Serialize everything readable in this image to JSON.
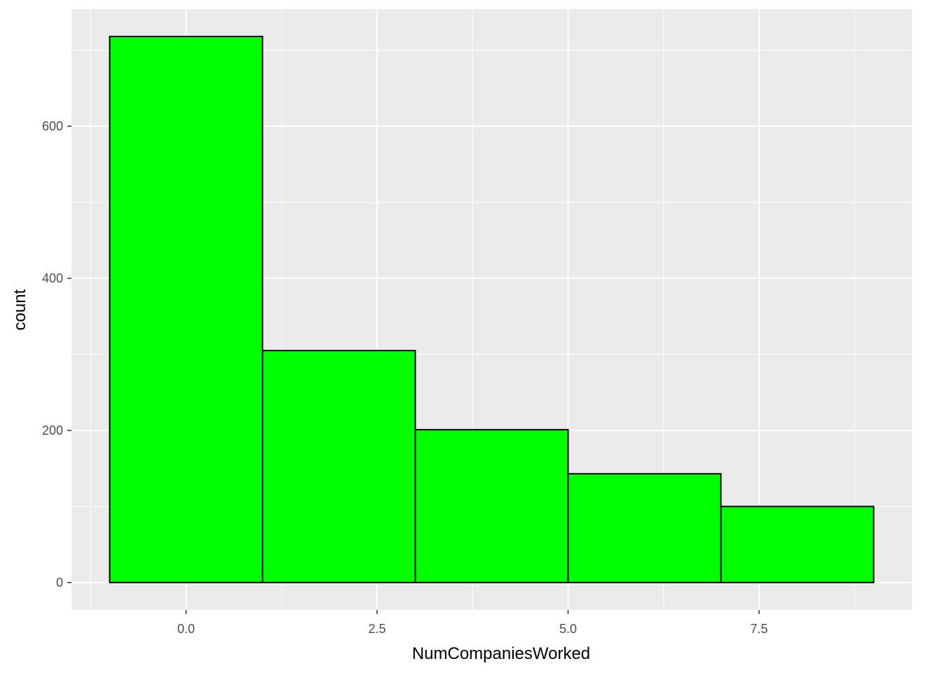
{
  "chart_data": {
    "type": "bar",
    "subtype": "histogram",
    "title": "",
    "xlabel": "NumCompaniesWorked",
    "ylabel": "count",
    "bins": [
      {
        "x_start": -1,
        "x_end": 1,
        "count": 718
      },
      {
        "x_start": 1,
        "x_end": 3,
        "count": 305
      },
      {
        "x_start": 3,
        "x_end": 5,
        "count": 201
      },
      {
        "x_start": 5,
        "x_end": 7,
        "count": 143
      },
      {
        "x_start": 7,
        "x_end": 9,
        "count": 100
      }
    ],
    "xlim": [
      -1.5,
      9.5
    ],
    "ylim": [
      -36,
      754
    ],
    "x_ticks": [
      0,
      2.5,
      5,
      7.5
    ],
    "x_tick_labels": [
      "0.0",
      "2.5",
      "5.0",
      "7.5"
    ],
    "y_ticks": [
      0,
      200,
      400,
      600
    ],
    "y_tick_labels": [
      "0",
      "200",
      "400",
      "600"
    ],
    "x_minor_ticks": [
      -1.25,
      1.25,
      3.75,
      6.25,
      8.75
    ],
    "y_minor_ticks": [
      100,
      300,
      500,
      700
    ],
    "grid": true,
    "legend": "none",
    "colors": {
      "bar_fill": "#00ff00",
      "bar_stroke": "#000000",
      "panel_background": "#ebebeb",
      "grid_line": "#ffffff",
      "tick_mark": "#333333"
    }
  }
}
